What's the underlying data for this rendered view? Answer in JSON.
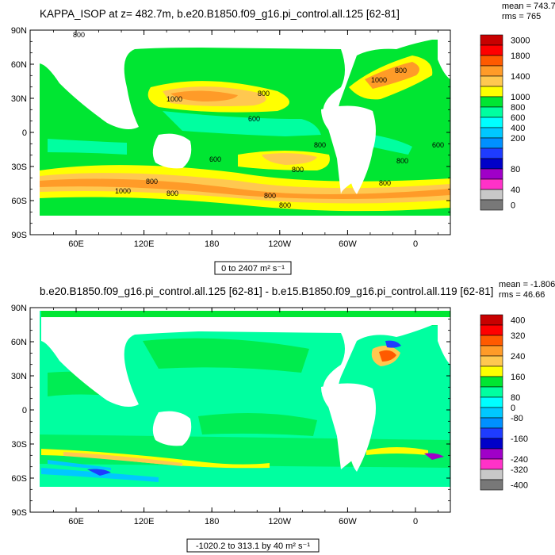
{
  "chart_data": [
    {
      "type": "filled-contour-map",
      "title": "KAPPA_ISOP at z= 482.7m, b.e20.B1850.f09_g16.pi_control.all.125 [62-81]",
      "stats": {
        "mean": "mean = 743.7",
        "rms": "rms = 765"
      },
      "lat_ticks": [
        "90N",
        "60N",
        "30N",
        "0",
        "30S",
        "60S",
        "90S"
      ],
      "lon_ticks": [
        "60E",
        "120E",
        "180",
        "120W",
        "60W",
        "0"
      ],
      "colorbar_labels": [
        "3000",
        "1800",
        "1400",
        "1000",
        "800",
        "600",
        "400",
        "200",
        "80",
        "40",
        "0"
      ],
      "colorbar_colors": [
        "#c80000",
        "#ff0000",
        "#ff5a00",
        "#ff9b28",
        "#ffc850",
        "#ffff00",
        "#00e632",
        "#00ffa0",
        "#00ffff",
        "#00c8ff",
        "#0090ff",
        "#1e3cff",
        "#0000c8",
        "#a000c8",
        "#ff32c8",
        "#c8c8c8",
        "#787878"
      ],
      "contour_labels": [
        "800",
        "1000",
        "800",
        "600",
        "1000",
        "800",
        "800",
        "800",
        "600",
        "800",
        "600",
        "1000",
        "800",
        "800",
        "800",
        "800",
        "800"
      ],
      "range_label": "0 to 2407 m² s⁻¹"
    },
    {
      "type": "filled-contour-map",
      "title": "b.e20.B1850.f09_g16.pi_control.all.125 [62-81] - b.e15.B1850.f09_g16.pi_control.all.119 [62-81]",
      "stats": {
        "mean": "mean = -1.806",
        "rms": "rms = 46.66"
      },
      "lat_ticks": [
        "90N",
        "60N",
        "30N",
        "0",
        "30S",
        "60S",
        "90S"
      ],
      "lon_ticks": [
        "60E",
        "120E",
        "180",
        "120W",
        "60W",
        "0"
      ],
      "colorbar_labels": [
        "400",
        "320",
        "240",
        "160",
        "80",
        "0",
        "-80",
        "-160",
        "-240",
        "-320",
        "-400"
      ],
      "colorbar_colors": [
        "#c80000",
        "#ff0000",
        "#ff5a00",
        "#ff9b28",
        "#ffc850",
        "#ffff00",
        "#00e632",
        "#00ffa0",
        "#00ffff",
        "#00c8ff",
        "#0090ff",
        "#1e3cff",
        "#0000c8",
        "#a000c8",
        "#ff32c8",
        "#c8c8c8",
        "#787878"
      ],
      "range_label": "-1020.2 to 313.1 by 40 m² s⁻¹"
    }
  ]
}
